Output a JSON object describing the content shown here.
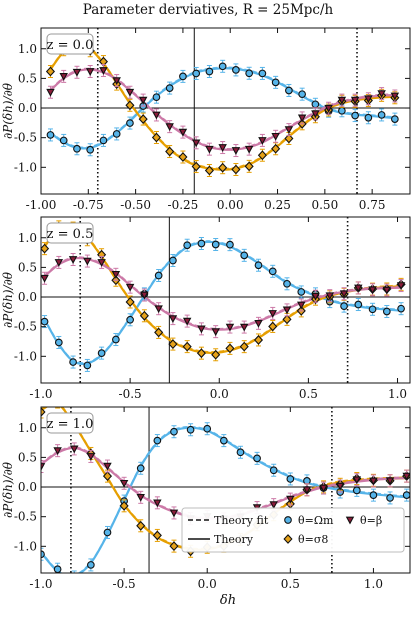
{
  "figure": {
    "title": "Parameter derviatives, R = 25Mpc/h",
    "ylabel": "∂P(δh)/∂θ",
    "xlabel": "δh"
  },
  "colors": {
    "omega_m": "#56b4e9",
    "sigma8": "#e69f00",
    "beta": "#cc79a7",
    "marker_omega": "#56b4e9",
    "marker_sigma8": "#e6a21a",
    "marker_beta": "#8b1c3a"
  },
  "legend": {
    "theory_fit": "Theory fit",
    "theory": "Theory",
    "omega_m": "θ=Ωm",
    "sigma8": "θ=σ8",
    "beta": "θ=β"
  },
  "chart_data": [
    {
      "type": "line",
      "label": "z = 0.0",
      "xlim": [
        -1.0,
        0.95
      ],
      "ylim": [
        -1.45,
        1.35
      ],
      "xticks": [
        -1.0,
        -0.75,
        -0.5,
        -0.25,
        0.0,
        0.25,
        0.5,
        0.75
      ],
      "xticklabels": [
        "-1.00",
        "-0.75",
        "-0.50",
        "-0.25",
        "0.00",
        "0.25",
        "0.50",
        "0.75"
      ],
      "yticks": [
        -1.0,
        -0.5,
        0.0,
        0.5,
        1.0
      ],
      "yticklabels": [
        "-1.0",
        "-0.5",
        "0.0",
        "0.5",
        "1.0"
      ],
      "vlines_dotted": [
        -0.7,
        0.67
      ],
      "vline_solid": -0.19,
      "series": [
        {
          "name": "θ=Ωm",
          "key": "omega_m",
          "x": [
            -0.95,
            -0.88,
            -0.81,
            -0.74,
            -0.67,
            -0.6,
            -0.53,
            -0.46,
            -0.39,
            -0.32,
            -0.25,
            -0.18,
            -0.11,
            -0.04,
            0.03,
            0.1,
            0.17,
            0.24,
            0.31,
            0.38,
            0.45,
            0.52,
            0.59,
            0.66,
            0.73,
            0.8,
            0.87
          ],
          "y": [
            -0.42,
            -0.58,
            -0.67,
            -0.67,
            -0.58,
            -0.42,
            -0.22,
            0.0,
            0.2,
            0.37,
            0.5,
            0.6,
            0.65,
            0.67,
            0.66,
            0.62,
            0.55,
            0.45,
            0.33,
            0.2,
            0.08,
            -0.02,
            -0.08,
            -0.11,
            -0.13,
            -0.15,
            -0.17
          ]
        },
        {
          "name": "θ=σ8",
          "key": "sigma8",
          "x": [
            -0.95,
            -0.88,
            -0.81,
            -0.74,
            -0.67,
            -0.6,
            -0.53,
            -0.46,
            -0.39,
            -0.32,
            -0.25,
            -0.18,
            -0.11,
            -0.04,
            0.03,
            0.1,
            0.17,
            0.24,
            0.31,
            0.38,
            0.45,
            0.52,
            0.59,
            0.66,
            0.73,
            0.8,
            0.87
          ],
          "y": [
            0.65,
            0.95,
            1.08,
            1.0,
            0.75,
            0.42,
            0.08,
            -0.22,
            -0.48,
            -0.7,
            -0.86,
            -0.97,
            -1.02,
            -1.04,
            -1.02,
            -0.95,
            -0.83,
            -0.67,
            -0.48,
            -0.3,
            -0.13,
            0.0,
            0.08,
            0.13,
            0.16,
            0.18,
            0.19
          ]
        },
        {
          "name": "θ=β",
          "key": "beta",
          "x": [
            -0.95,
            -0.88,
            -0.81,
            -0.74,
            -0.67,
            -0.6,
            -0.53,
            -0.46,
            -0.39,
            -0.32,
            -0.25,
            -0.18,
            -0.11,
            -0.04,
            0.03,
            0.1,
            0.17,
            0.24,
            0.31,
            0.38,
            0.45,
            0.52,
            0.59,
            0.66,
            0.73,
            0.8,
            0.87
          ],
          "y": [
            0.3,
            0.5,
            0.62,
            0.65,
            0.6,
            0.48,
            0.3,
            0.1,
            -0.1,
            -0.28,
            -0.44,
            -0.57,
            -0.66,
            -0.7,
            -0.7,
            -0.66,
            -0.58,
            -0.46,
            -0.33,
            -0.2,
            -0.08,
            0.03,
            0.1,
            0.15,
            0.19,
            0.21,
            0.22
          ]
        }
      ]
    },
    {
      "type": "line",
      "label": "z = 0.5",
      "xlim": [
        -1.0,
        1.07
      ],
      "ylim": [
        -1.45,
        1.35
      ],
      "xticks": [
        -1.0,
        -0.5,
        0.0,
        0.5,
        1.0
      ],
      "xticklabels": [
        "-1.0",
        "-0.5",
        "0.0",
        "0.5",
        "1.0"
      ],
      "yticks": [
        -1.0,
        -0.5,
        0.0,
        0.5,
        1.0
      ],
      "yticklabels": [
        "-1.0",
        "-0.5",
        "0.0",
        "0.5",
        "1.0"
      ],
      "vlines_dotted": [
        -0.78,
        0.72
      ],
      "vline_solid": -0.28,
      "series": [
        {
          "name": "θ=Ωm",
          "key": "omega_m",
          "x": [
            -0.98,
            -0.9,
            -0.82,
            -0.74,
            -0.66,
            -0.58,
            -0.5,
            -0.42,
            -0.34,
            -0.26,
            -0.18,
            -0.1,
            -0.02,
            0.06,
            0.14,
            0.22,
            0.3,
            0.38,
            0.46,
            0.54,
            0.62,
            0.7,
            0.78,
            0.86,
            0.94,
            1.02
          ],
          "y": [
            -0.38,
            -0.8,
            -1.08,
            -1.12,
            -0.98,
            -0.7,
            -0.35,
            0.02,
            0.38,
            0.65,
            0.84,
            0.92,
            0.92,
            0.85,
            0.72,
            0.57,
            0.4,
            0.24,
            0.12,
            0.02,
            -0.06,
            -0.12,
            -0.16,
            -0.19,
            -0.21,
            -0.23
          ]
        },
        {
          "name": "θ=σ8",
          "key": "sigma8",
          "x": [
            -0.98,
            -0.9,
            -0.82,
            -0.74,
            -0.66,
            -0.58,
            -0.5,
            -0.42,
            -0.34,
            -0.26,
            -0.18,
            -0.1,
            -0.02,
            0.06,
            0.14,
            0.22,
            0.3,
            0.38,
            0.46,
            0.54,
            0.62,
            0.7,
            0.78,
            0.86,
            0.94,
            1.02
          ],
          "y": [
            0.85,
            1.15,
            1.18,
            1.0,
            0.68,
            0.3,
            -0.05,
            -0.35,
            -0.58,
            -0.76,
            -0.87,
            -0.93,
            -0.94,
            -0.9,
            -0.82,
            -0.69,
            -0.53,
            -0.36,
            -0.2,
            -0.07,
            0.02,
            0.08,
            0.12,
            0.15,
            0.17,
            0.18
          ]
        },
        {
          "name": "θ=β",
          "key": "beta",
          "x": [
            -0.98,
            -0.9,
            -0.82,
            -0.74,
            -0.66,
            -0.58,
            -0.5,
            -0.42,
            -0.34,
            -0.26,
            -0.18,
            -0.1,
            -0.02,
            0.06,
            0.14,
            0.22,
            0.3,
            0.38,
            0.46,
            0.54,
            0.62,
            0.7,
            0.78,
            0.86,
            0.94,
            1.02
          ],
          "y": [
            0.35,
            0.55,
            0.65,
            0.64,
            0.55,
            0.4,
            0.2,
            0.0,
            -0.18,
            -0.33,
            -0.44,
            -0.52,
            -0.55,
            -0.54,
            -0.49,
            -0.41,
            -0.31,
            -0.2,
            -0.1,
            -0.02,
            0.04,
            0.09,
            0.12,
            0.14,
            0.15,
            0.16
          ]
        }
      ]
    },
    {
      "type": "line",
      "label": "z = 1.0",
      "xlim": [
        -1.0,
        1.22
      ],
      "ylim": [
        -1.45,
        1.35
      ],
      "xticks": [
        -1.0,
        -0.5,
        0.0,
        0.5,
        1.0
      ],
      "xticklabels": [
        "-1.0",
        "-0.5",
        "0.0",
        "0.5",
        "1.0"
      ],
      "yticks": [
        -1.0,
        -0.5,
        0.0,
        0.5,
        1.0
      ],
      "yticklabels": [
        "-1.0",
        "-0.5",
        "0.0",
        "0.5",
        "1.0"
      ],
      "vlines_dotted": [
        -0.82,
        0.75
      ],
      "vline_solid": -0.35,
      "series": [
        {
          "name": "θ=Ωm",
          "key": "omega_m",
          "x": [
            -1.0,
            -0.9,
            -0.8,
            -0.7,
            -0.6,
            -0.5,
            -0.4,
            -0.3,
            -0.2,
            -0.1,
            0.0,
            0.1,
            0.2,
            0.3,
            0.4,
            0.5,
            0.6,
            0.7,
            0.8,
            0.9,
            1.0,
            1.1,
            1.2
          ],
          "y": [
            -1.1,
            -1.42,
            -1.5,
            -1.28,
            -0.8,
            -0.22,
            0.35,
            0.75,
            0.95,
            1.0,
            0.95,
            0.8,
            0.62,
            0.45,
            0.3,
            0.17,
            0.07,
            0.0,
            -0.05,
            -0.09,
            -0.12,
            -0.15,
            -0.17
          ]
        },
        {
          "name": "θ=σ8",
          "key": "sigma8",
          "x": [
            -1.0,
            -0.9,
            -0.8,
            -0.7,
            -0.6,
            -0.5,
            -0.4,
            -0.3,
            -0.2,
            -0.1,
            0.0,
            0.1,
            0.2,
            0.3,
            0.4,
            0.5,
            0.6,
            0.7,
            0.8,
            0.9,
            1.0,
            1.1,
            1.2
          ],
          "y": [
            1.3,
            1.4,
            1.05,
            0.6,
            0.15,
            -0.3,
            -0.62,
            -0.85,
            -0.98,
            -1.05,
            -1.05,
            -0.98,
            -0.85,
            -0.67,
            -0.45,
            -0.25,
            -0.08,
            0.02,
            0.08,
            0.11,
            0.13,
            0.14,
            0.15
          ]
        },
        {
          "name": "θ=β",
          "key": "beta",
          "x": [
            -1.0,
            -0.9,
            -0.8,
            -0.7,
            -0.6,
            -0.5,
            -0.4,
            -0.3,
            -0.2,
            -0.1,
            0.0,
            0.1,
            0.2,
            0.3,
            0.4,
            0.5,
            0.6,
            0.7,
            0.8,
            0.9,
            1.0,
            1.1,
            1.2
          ],
          "y": [
            0.38,
            0.58,
            0.66,
            0.55,
            0.32,
            0.08,
            -0.14,
            -0.3,
            -0.42,
            -0.5,
            -0.53,
            -0.52,
            -0.47,
            -0.38,
            -0.28,
            -0.17,
            -0.08,
            0.0,
            0.05,
            0.09,
            0.12,
            0.14,
            0.15
          ]
        }
      ]
    }
  ]
}
